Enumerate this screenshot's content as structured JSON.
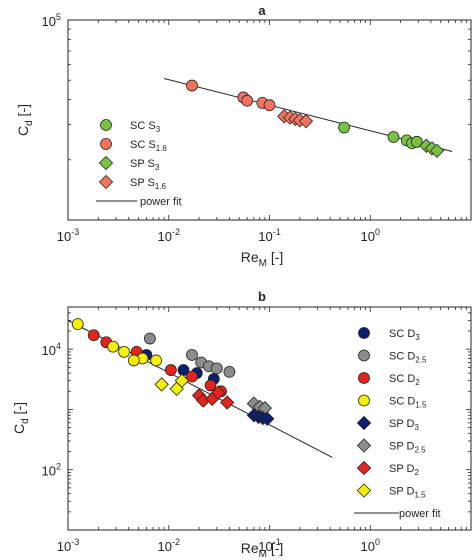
{
  "chart_data": [
    {
      "type": "scatter",
      "title": "a",
      "xscale": "log",
      "yscale": "log",
      "xlim": [
        0.001,
        10
      ],
      "ylim": [
        10000,
        100000
      ],
      "xticks": [
        {
          "value": 0.001,
          "base": "10",
          "exp": "-3"
        },
        {
          "value": 0.01,
          "base": "10",
          "exp": "-2"
        },
        {
          "value": 0.1,
          "base": "10",
          "exp": "-1"
        },
        {
          "value": 1,
          "base": "10",
          "exp": "0"
        }
      ],
      "yticks": [
        {
          "value": 100000,
          "base": "10",
          "exp": "5"
        }
      ],
      "xlabel": {
        "main": "Re",
        "sub": "M",
        "rest": " [-]"
      },
      "ylabel": {
        "main": "C",
        "sub": "d",
        "rest": " [-]"
      },
      "legend_position": "bottom-left",
      "legend": [
        {
          "pre": "SC S",
          "sub": "3",
          "marker": "circle",
          "color": "#7ac142"
        },
        {
          "pre": "SC S",
          "sub": "1.6",
          "marker": "circle",
          "color": "#f4735e"
        },
        {
          "pre": "SP S",
          "sub": "3",
          "marker": "diamond",
          "color": "#7ac142"
        },
        {
          "pre": "SP S",
          "sub": "1.6",
          "marker": "diamond",
          "color": "#f4735e"
        },
        {
          "pre": "power fit",
          "sub": "",
          "marker": "line",
          "color": "#262626"
        }
      ],
      "series": [
        {
          "marker": "circle",
          "color": "#f4735e",
          "points": [
            [
              0.017,
              47000
            ],
            [
              0.055,
              41000
            ],
            [
              0.06,
              39500
            ],
            [
              0.085,
              38500
            ],
            [
              0.1,
              37500
            ]
          ]
        },
        {
          "marker": "diamond",
          "color": "#f4735e",
          "points": [
            [
              0.14,
              33000
            ],
            [
              0.16,
              32500
            ],
            [
              0.18,
              32000
            ],
            [
              0.2,
              31500
            ],
            [
              0.23,
              31200
            ]
          ]
        },
        {
          "marker": "circle",
          "color": "#7ac142",
          "points": [
            [
              0.55,
              29000
            ],
            [
              1.7,
              26000
            ],
            [
              2.3,
              25000
            ],
            [
              2.6,
              24200
            ],
            [
              2.9,
              24600
            ]
          ]
        },
        {
          "marker": "diamond",
          "color": "#7ac142",
          "points": [
            [
              3.6,
              23500
            ],
            [
              4.1,
              22800
            ],
            [
              4.6,
              22200
            ]
          ]
        }
      ],
      "fit": {
        "from": [
          0.009,
          51000
        ],
        "to": [
          6.5,
          22000
        ]
      }
    },
    {
      "type": "scatter",
      "title": "b",
      "xscale": "log",
      "yscale": "log",
      "xlim": [
        0.001,
        10
      ],
      "ylim": [
        10,
        50000
      ],
      "xticks": [
        {
          "value": 0.001,
          "base": "10",
          "exp": "-3"
        },
        {
          "value": 0.01,
          "base": "10",
          "exp": "-2"
        },
        {
          "value": 0.1,
          "base": "10",
          "exp": "-1"
        },
        {
          "value": 1,
          "base": "10",
          "exp": "0"
        }
      ],
      "yticks": [
        {
          "value": 100,
          "base": "10",
          "exp": "2"
        },
        {
          "value": 10000,
          "base": "10",
          "exp": "4"
        }
      ],
      "xlabel": {
        "main": "Re",
        "sub": "M",
        "rest": " [-]"
      },
      "ylabel": {
        "main": "C",
        "sub": "d",
        "rest": " [-]"
      },
      "legend_position": "right",
      "legend": [
        {
          "pre": "SC D",
          "sub": "3",
          "marker": "circle",
          "color": "#0b1f6e"
        },
        {
          "pre": "SC D",
          "sub": "2.5",
          "marker": "circle",
          "color": "#8c8c8c"
        },
        {
          "pre": "SC D",
          "sub": "2",
          "marker": "circle",
          "color": "#e3231c"
        },
        {
          "pre": "SC D",
          "sub": "1.5",
          "marker": "circle",
          "color": "#f5f000"
        },
        {
          "pre": "SP D",
          "sub": "3",
          "marker": "diamond",
          "color": "#0b1f6e"
        },
        {
          "pre": "SP D",
          "sub": "2.5",
          "marker": "diamond",
          "color": "#8c8c8c"
        },
        {
          "pre": "SP D",
          "sub": "2",
          "marker": "diamond",
          "color": "#e3231c"
        },
        {
          "pre": "SP D",
          "sub": "1.5",
          "marker": "diamond",
          "color": "#f5f000"
        },
        {
          "pre": "power fit",
          "sub": "",
          "marker": "line",
          "color": "#262626"
        }
      ],
      "series": [
        {
          "marker": "circle",
          "color": "#8c8c8c",
          "points": [
            [
              0.0065,
              15000
            ],
            [
              0.017,
              8000
            ],
            [
              0.021,
              6000
            ],
            [
              0.025,
              5200
            ],
            [
              0.03,
              4800
            ],
            [
              0.04,
              4200
            ]
          ]
        },
        {
          "marker": "circle",
          "color": "#0b1f6e",
          "points": [
            [
              0.006,
              8000
            ],
            [
              0.014,
              4500
            ],
            [
              0.019,
              4000
            ],
            [
              0.028,
              3200
            ]
          ]
        },
        {
          "marker": "circle",
          "color": "#e3231c",
          "points": [
            [
              0.0018,
              17000
            ],
            [
              0.0024,
              13000
            ],
            [
              0.0048,
              9000
            ],
            [
              0.0105,
              4500
            ],
            [
              0.017,
              3500
            ],
            [
              0.026,
              2500
            ],
            [
              0.033,
              2000
            ]
          ]
        },
        {
          "marker": "circle",
          "color": "#f5f000",
          "points": [
            [
              0.00125,
              26000
            ],
            [
              0.0028,
              11000
            ],
            [
              0.0036,
              9000
            ],
            [
              0.0055,
              7000
            ],
            [
              0.0075,
              6500
            ],
            [
              0.0045,
              6500
            ]
          ]
        },
        {
          "marker": "diamond",
          "color": "#f5f000",
          "points": [
            [
              0.0085,
              2600
            ],
            [
              0.012,
              2200
            ],
            [
              0.0135,
              3000
            ]
          ]
        },
        {
          "marker": "diamond",
          "color": "#e3231c",
          "points": [
            [
              0.02,
              1700
            ],
            [
              0.022,
              1400
            ],
            [
              0.027,
              1500
            ],
            [
              0.031,
              1900
            ],
            [
              0.038,
              1300
            ]
          ]
        },
        {
          "marker": "diamond",
          "color": "#8c8c8c",
          "points": [
            [
              0.07,
              1250
            ],
            [
              0.08,
              1100
            ],
            [
              0.09,
              1050
            ]
          ]
        },
        {
          "marker": "diamond",
          "color": "#0b1f6e",
          "points": [
            [
              0.07,
              800
            ],
            [
              0.078,
              750
            ],
            [
              0.086,
              720
            ],
            [
              0.095,
              700
            ]
          ]
        }
      ],
      "fit": {
        "from": [
          0.001,
          30000
        ],
        "to": [
          0.42,
          160
        ]
      }
    }
  ]
}
